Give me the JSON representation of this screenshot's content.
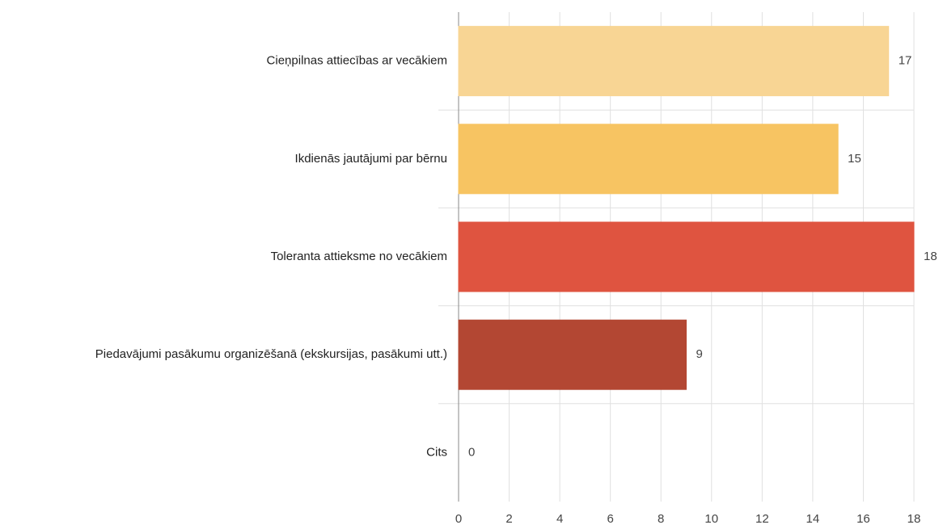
{
  "chart_data": {
    "type": "bar",
    "orientation": "horizontal",
    "categories": [
      "Cieņpilnas attiecības ar vecākiem",
      "Ikdienās jautājumi par bērnu",
      "Toleranta attieksme no vecākiem",
      "Piedavājumi pasākumu organizēšanā (ekskursijas, pasākumi utt.)",
      "Cits"
    ],
    "values": [
      17,
      15,
      18,
      9,
      0
    ],
    "colors": [
      "#f8d594",
      "#f7c462",
      "#df5440",
      "#b34733",
      "#8e3b2e"
    ],
    "xlim": [
      0,
      18
    ],
    "xticks": [
      0,
      2,
      4,
      6,
      8,
      10,
      12,
      14,
      16,
      18
    ],
    "grid": true
  }
}
